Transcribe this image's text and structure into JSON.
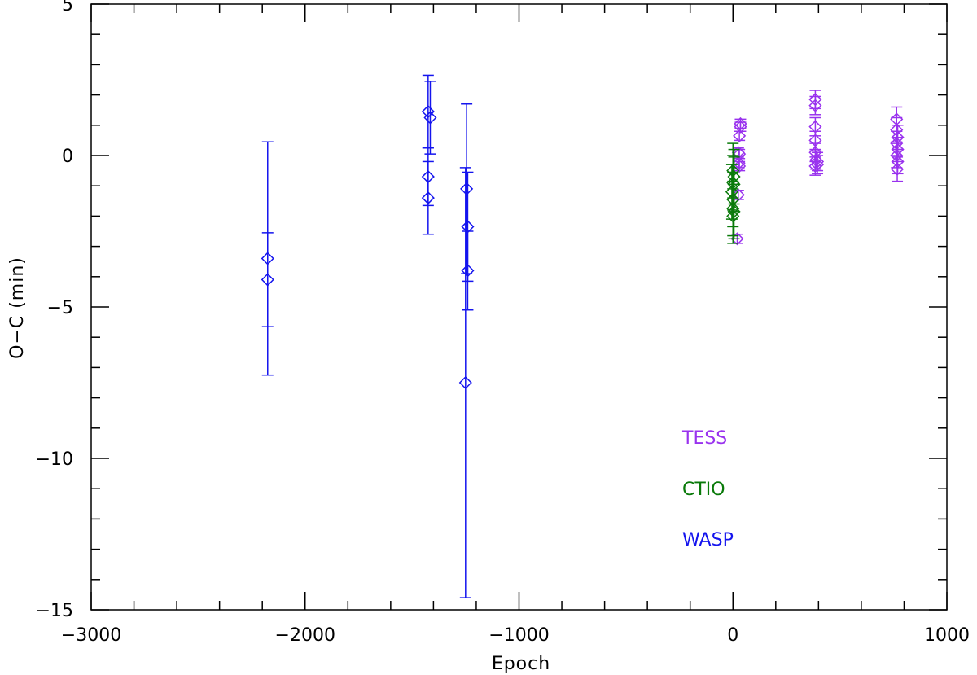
{
  "chart_data": {
    "type": "scatter",
    "xlabel": "Epoch",
    "ylabel": "O−C (min)",
    "xlim": [
      -3000,
      1000
    ],
    "ylim": [
      -15,
      5
    ],
    "xticks": [
      -3000,
      -2000,
      -1000,
      0,
      1000
    ],
    "xtick_labels": [
      "−3000",
      "−2000",
      "−1000",
      "0",
      "1000"
    ],
    "yticks": [
      -15,
      -10,
      -5,
      0,
      5
    ],
    "ytick_labels": [
      "−15",
      "−10",
      "−5",
      "0",
      "5"
    ],
    "grid": false,
    "legend_position": "bottom-center",
    "marker": "diamond-with-errorbars",
    "series": [
      {
        "name": "TESS",
        "color": "#9932ee",
        "points": [
          {
            "x": 20,
            "y": -2.75,
            "err": 0.15
          },
          {
            "x": 25,
            "y": -1.3,
            "err": 0.15
          },
          {
            "x": 30,
            "y": -0.35,
            "err": 0.15
          },
          {
            "x": 28,
            "y": -0.25,
            "err": 0.15
          },
          {
            "x": 30,
            "y": 0.05,
            "err": 0.15
          },
          {
            "x": 25,
            "y": 0.1,
            "err": 0.15
          },
          {
            "x": 30,
            "y": 0.65,
            "err": 0.15
          },
          {
            "x": 35,
            "y": 0.95,
            "err": 0.15
          },
          {
            "x": 35,
            "y": 1.05,
            "err": 0.15
          },
          {
            "x": 385,
            "y": 1.85,
            "err": 0.3
          },
          {
            "x": 385,
            "y": 1.65,
            "err": 0.3
          },
          {
            "x": 385,
            "y": 0.95,
            "err": 0.3
          },
          {
            "x": 385,
            "y": 0.5,
            "err": 0.3
          },
          {
            "x": 385,
            "y": 0.1,
            "err": 0.3
          },
          {
            "x": 388,
            "y": -0.15,
            "err": 0.3
          },
          {
            "x": 395,
            "y": -0.2,
            "err": 0.3
          },
          {
            "x": 385,
            "y": -0.35,
            "err": 0.3
          },
          {
            "x": 395,
            "y": -0.3,
            "err": 0.3
          },
          {
            "x": 765,
            "y": 1.2,
            "err": 0.4
          },
          {
            "x": 765,
            "y": 0.85,
            "err": 0.4
          },
          {
            "x": 770,
            "y": 0.6,
            "err": 0.4
          },
          {
            "x": 765,
            "y": 0.4,
            "err": 0.4
          },
          {
            "x": 770,
            "y": 0.2,
            "err": 0.4
          },
          {
            "x": 765,
            "y": 0.0,
            "err": 0.4
          },
          {
            "x": 770,
            "y": -0.2,
            "err": 0.4
          },
          {
            "x": 768,
            "y": -0.45,
            "err": 0.4
          }
        ]
      },
      {
        "name": "CTIO",
        "color": "#0a7a0a",
        "points": [
          {
            "x": 0,
            "y": -0.5,
            "err": 0.9
          },
          {
            "x": 5,
            "y": -0.7,
            "err": 0.9
          },
          {
            "x": 0,
            "y": -0.9,
            "err": 0.9
          },
          {
            "x": 5,
            "y": -0.95,
            "err": 0.9
          },
          {
            "x": -5,
            "y": -1.2,
            "err": 0.9
          },
          {
            "x": 0,
            "y": -1.45,
            "err": 0.9
          },
          {
            "x": 0,
            "y": -1.75,
            "err": 0.9
          },
          {
            "x": 5,
            "y": -1.85,
            "err": 0.9
          },
          {
            "x": 0,
            "y": -2.0,
            "err": 0.9
          }
        ]
      },
      {
        "name": "WASP",
        "color": "#1414ee",
        "points": [
          {
            "x": -2175,
            "y": -3.4,
            "err": 3.85
          },
          {
            "x": -2175,
            "y": -4.1,
            "err": 1.55
          },
          {
            "x": -1425,
            "y": 1.45,
            "err": 1.2
          },
          {
            "x": -1415,
            "y": 1.25,
            "err": 1.2
          },
          {
            "x": -1425,
            "y": -0.7,
            "err": 0.95
          },
          {
            "x": -1425,
            "y": -1.4,
            "err": 1.2
          },
          {
            "x": -1245,
            "y": -1.1,
            "err": 2.8
          },
          {
            "x": -1240,
            "y": -2.35,
            "err": 1.8
          },
          {
            "x": -1240,
            "y": -3.8,
            "err": 1.3
          },
          {
            "x": -1250,
            "y": -7.5,
            "err": 7.1
          }
        ]
      }
    ]
  }
}
